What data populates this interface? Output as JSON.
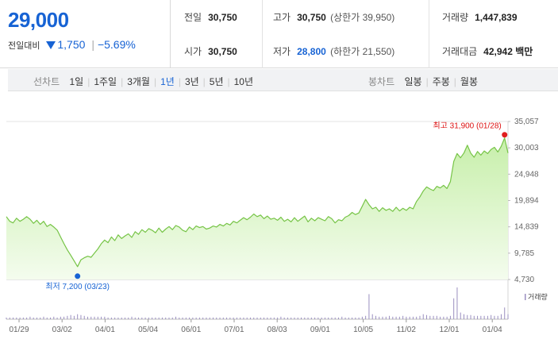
{
  "summary": {
    "price": "29,000",
    "change_label": "전일대비",
    "change_value": "1,750",
    "change_pct": "−5.69%",
    "prev_close": {
      "label": "전일",
      "value": "30,750"
    },
    "open": {
      "label": "시가",
      "value": "30,750"
    },
    "high": {
      "label": "고가",
      "value": "30,750",
      "sub": "(상한가 39,950)"
    },
    "low": {
      "label": "저가",
      "value": "28,800",
      "sub": "(하한가 21,550)"
    },
    "volume": {
      "label": "거래량",
      "value": "1,447,839"
    },
    "amount": {
      "label": "거래대금",
      "value": "42,942",
      "unit": "백만"
    }
  },
  "toolbar": {
    "line_chart_label": "선차트",
    "line_periods": [
      "1일",
      "1주일",
      "3개월",
      "1년",
      "3년",
      "5년",
      "10년"
    ],
    "active_period": "1년",
    "candle_chart_label": "봉차트",
    "candle_periods": [
      "일봉",
      "주봉",
      "월봉"
    ]
  },
  "colors": {
    "accent_blue": "#1763d4",
    "line_green": "#76c446",
    "area_fill_top": "#c7efaa",
    "area_fill_bottom": "#effbe6",
    "high_marker": "#e01e1e",
    "low_marker": "#1763d4"
  },
  "chart_data": {
    "type": "area",
    "x_ticks": [
      "01/29",
      "03/02",
      "04/01",
      "05/04",
      "06/01",
      "07/01",
      "08/03",
      "09/01",
      "10/05",
      "11/02",
      "12/01",
      "01/04"
    ],
    "y_ticks": [
      "35,057",
      "30,003",
      "24,948",
      "19,894",
      "14,839",
      "9,785",
      "4,730"
    ],
    "ylim": [
      4730,
      35057
    ],
    "high_annotation": "최고 31,900 (01/28)",
    "low_annotation": "최저 7,200 (03/23)",
    "volume_label": "거래량",
    "series": [
      {
        "values": [
          16800,
          15900,
          15600,
          16500,
          15900,
          16300,
          16800,
          16300,
          15500,
          16100,
          15300,
          15900,
          14900,
          15300,
          14800,
          14200,
          12900,
          11600,
          10400,
          9400,
          8300,
          7200,
          8500,
          8900,
          9200,
          9000,
          9800,
          10600,
          11600,
          12300,
          11800,
          12900,
          12200,
          13300,
          12600,
          13100,
          13500,
          12800,
          13900,
          13400,
          14300,
          13800,
          14500,
          14200,
          13700,
          14600,
          13800,
          14400,
          14900,
          14300,
          15100,
          14800,
          14200,
          13900,
          14800,
          14300,
          15000,
          14700,
          14900,
          14400,
          14600,
          15000,
          14800,
          15300,
          15000,
          15500,
          15200,
          15900,
          15600,
          16100,
          16600,
          16200,
          16700,
          17300,
          16800,
          17100,
          16400,
          16900,
          16300,
          16500,
          16100,
          16700,
          15900,
          16300,
          15800,
          16600,
          15900,
          16400,
          16900,
          15800,
          16500,
          16000,
          16600,
          16300,
          16000,
          16800,
          16400,
          15600,
          16200,
          16000,
          16700,
          17000,
          17600,
          17200,
          17500,
          18800,
          20100,
          19100,
          18300,
          18600,
          17800,
          18500,
          18000,
          18300,
          17800,
          18600,
          17900,
          18400,
          18000,
          18600,
          18300,
          19700,
          20600,
          21700,
          22500,
          22100,
          21800,
          22600,
          22300,
          22800,
          22200,
          23500,
          27400,
          28900,
          28100,
          29000,
          30500,
          29000,
          28200,
          29300,
          28600,
          29400,
          28900,
          29700,
          30100,
          29200,
          30300,
          31900,
          29000
        ]
      }
    ],
    "volume": [
      2,
      2,
      2,
      2,
      2,
      2,
      2,
      3,
      2,
      2,
      2,
      3,
      2,
      2,
      3,
      2,
      3,
      3,
      4,
      5,
      4,
      6,
      5,
      4,
      3,
      3,
      3,
      3,
      3,
      3,
      2,
      2,
      2,
      2,
      2,
      2,
      2,
      3,
      2,
      2,
      2,
      2,
      2,
      2,
      2,
      2,
      2,
      2,
      2,
      2,
      3,
      2,
      2,
      2,
      2,
      2,
      2,
      2,
      2,
      2,
      2,
      2,
      2,
      2,
      2,
      2,
      2,
      2,
      2,
      2,
      2,
      2,
      2,
      2,
      2,
      2,
      2,
      2,
      2,
      2,
      2,
      3,
      2,
      2,
      2,
      2,
      2,
      2,
      2,
      2,
      2,
      2,
      2,
      2,
      2,
      2,
      2,
      2,
      2,
      3,
      2,
      2,
      2,
      2,
      2,
      3,
      4,
      30,
      6,
      4,
      3,
      3,
      3,
      4,
      3,
      3,
      3,
      4,
      3,
      3,
      3,
      3,
      4,
      6,
      5,
      4,
      4,
      4,
      3,
      3,
      3,
      4,
      25,
      38,
      8,
      6,
      5,
      5,
      4,
      4,
      4,
      4,
      4,
      5,
      4,
      4,
      6,
      14,
      6
    ]
  }
}
